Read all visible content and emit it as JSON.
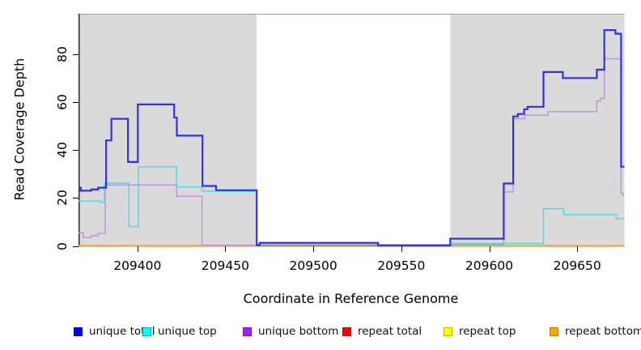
{
  "figure": {
    "background": "#ffffff",
    "y_axis": {
      "label": "Read Coverage Depth",
      "ticks": [
        "0",
        "20",
        "40",
        "60",
        "80"
      ]
    },
    "x_axis": {
      "label": "Coordinate in Reference Genome",
      "ticks": [
        "209400",
        "209450",
        "209500",
        "209550",
        "209600",
        "209650"
      ]
    },
    "styles": {
      "axis_line_color": "#2b2b2b",
      "plot_top_border_color": "#9c9c9c",
      "tick_color": "#000000",
      "text_color": "#000000",
      "region_fill": "#dadada"
    },
    "legend": [
      {
        "label": "unique total",
        "fill": "#0000f0",
        "border": "#0000b8"
      },
      {
        "label": "unique top",
        "fill": "#00ffff",
        "border": "#00a9b8"
      },
      {
        "label": "unique bottom",
        "fill": "#a020f0",
        "border": "#7a10c0"
      },
      {
        "label": "repeat total",
        "fill": "#ff0000",
        "border": "#b80000"
      },
      {
        "label": "repeat top",
        "fill": "#ffff00",
        "border": "#b8b800"
      },
      {
        "label": "repeat bottom",
        "fill": "#ffa500",
        "border": "#c07800"
      }
    ]
  },
  "chart_data": {
    "type": "line",
    "subtype": "step-after-coverage-plot",
    "title": "",
    "xlabel": "Coordinate in Reference Genome",
    "ylabel": "Read Coverage Depth",
    "xlim": [
      209366.3,
      209676.6
    ],
    "ylim": [
      0,
      96.8
    ],
    "grid": false,
    "legend_position": "bottom",
    "x_ticks": [
      209400,
      209450,
      209500,
      209550,
      209600,
      209650
    ],
    "y_ticks": [
      0,
      20,
      40,
      60,
      80
    ],
    "shaded_regions": [
      {
        "x0": 209366.3,
        "x1": 209467.6
      },
      {
        "x0": 209577.6,
        "x1": 209676.6
      }
    ],
    "series": [
      {
        "name": "repeat top",
        "color": "#ffff00",
        "width": 1.4,
        "segments": [
          [
            [
              209366.3,
              0
            ],
            [
              209676.6,
              0
            ]
          ]
        ]
      },
      {
        "name": "repeat total",
        "color": "#e63d4d",
        "width": 1.4,
        "segments": [
          [
            [
              209366.3,
              0
            ],
            [
              209676.6,
              0
            ]
          ]
        ]
      },
      {
        "name": "unique top + repeat top overlap (appears green)",
        "color": "#a5dd9d",
        "width": 1.4,
        "segments": [
          [
            [
              209471.5,
              0.55
            ],
            [
              209536.6,
              0.55
            ]
          ]
        ]
      },
      {
        "name": "repeat bottom",
        "color": "#ff9d00",
        "width": 1.6,
        "segments": [
          [
            [
              209366.3,
              0
            ],
            [
              209467.6,
              0
            ]
          ],
          [
            [
              209577.6,
              0
            ],
            [
              209676.6,
              0
            ]
          ]
        ]
      },
      {
        "name": "unique bottom",
        "color": "#bd90dc",
        "width": 1.4,
        "segments": [
          [
            [
              209366.3,
              5.5
            ],
            [
              209368.9,
              3.5
            ],
            [
              209373.5,
              4.3
            ],
            [
              209377.5,
              5.2
            ],
            [
              209381.5,
              25.4
            ],
            [
              209422,
              20.7
            ],
            [
              209436.5,
              0.3
            ],
            [
              209467.6,
              0.9
            ],
            [
              209536.6,
              0.2
            ],
            [
              209577.6,
              0.7
            ],
            [
              209608,
              22.5
            ],
            [
              209613.4,
              53
            ],
            [
              209620,
              54.5
            ],
            [
              209633.2,
              56
            ],
            [
              209660.9,
              60.4
            ],
            [
              209663,
              61.5
            ],
            [
              209665.2,
              78
            ],
            [
              209674.7,
              22
            ],
            [
              209675.7,
              21
            ],
            [
              209676.6,
              21
            ]
          ]
        ]
      },
      {
        "name": "unique top",
        "color": "#45dce9",
        "width": 1.4,
        "segments": [
          [
            [
              209366.3,
              18.7
            ],
            [
              209379,
              18.1
            ],
            [
              209381,
              26.2
            ],
            [
              209395,
              8
            ],
            [
              209400.4,
              33
            ],
            [
              209422,
              24.6
            ],
            [
              209436.5,
              22.8
            ],
            [
              209467.6,
              0.6
            ],
            [
              209577.6,
              1
            ],
            [
              209630.6,
              15.5
            ],
            [
              209642,
              13
            ],
            [
              209672,
              11.4
            ],
            [
              209676.6,
              11.4
            ]
          ]
        ]
      },
      {
        "name": "unique total",
        "color": "#3232e0",
        "width": 2.2,
        "segments": [
          [
            [
              209366.3,
              24.3
            ],
            [
              209367.6,
              23
            ],
            [
              209373.5,
              23.5
            ],
            [
              209377.5,
              24.3
            ],
            [
              209382,
              44
            ],
            [
              209385,
              53
            ],
            [
              209394.4,
              35
            ],
            [
              209400,
              59
            ],
            [
              209420.7,
              53.5
            ],
            [
              209422.2,
              46
            ],
            [
              209436.8,
              25
            ],
            [
              209444.5,
              23.2
            ],
            [
              209467.6,
              0.3
            ],
            [
              209469.4,
              1.3
            ],
            [
              209536.6,
              0.15
            ],
            [
              209577.6,
              3
            ],
            [
              209608,
              26
            ],
            [
              209613.4,
              54
            ],
            [
              209616,
              55
            ],
            [
              209619.6,
              57
            ],
            [
              209621.5,
              58
            ],
            [
              209630.6,
              72.5
            ],
            [
              209641.6,
              70
            ],
            [
              209660.9,
              73.5
            ],
            [
              209665.2,
              90
            ],
            [
              209671.5,
              88.5
            ],
            [
              209674.7,
              33
            ],
            [
              209676.6,
              33
            ]
          ]
        ]
      }
    ]
  }
}
